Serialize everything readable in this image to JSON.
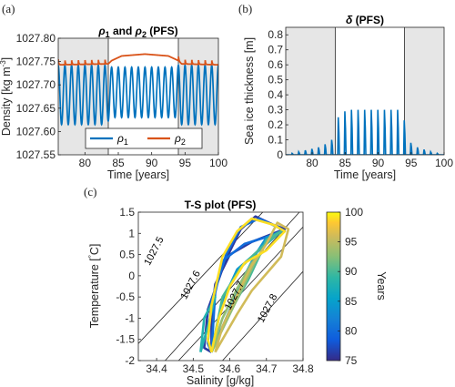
{
  "figure": {
    "label_a": "(a)",
    "label_b": "(b)",
    "label_c": "(c)"
  },
  "chart_data": [
    {
      "id": "a",
      "type": "line",
      "title": "ρ₁ and ρ₂ (PFS)",
      "xlabel": "Time [years]",
      "ylabel": "Density [kg m⁻³]",
      "xlim": [
        76,
        100
      ],
      "ylim": [
        1027.55,
        1027.8
      ],
      "xticks": [
        80,
        85,
        90,
        95,
        100
      ],
      "yticks": [
        1027.55,
        1027.6,
        1027.65,
        1027.7,
        1027.75,
        1027.8
      ],
      "shaded_intervals": [
        [
          76,
          83.5
        ],
        [
          94,
          100
        ]
      ],
      "legend": {
        "position": "bottom-center",
        "entries": [
          "ρ1",
          "ρ2"
        ]
      },
      "series": [
        {
          "name": "ρ1",
          "color": "#0072BD",
          "kind": "seasonal",
          "period": 1,
          "envelope": [
            [
              76,
              1027.615,
              1027.742
            ],
            [
              83,
              1027.615,
              1027.742
            ],
            [
              84,
              1027.63,
              1027.738
            ],
            [
              93.5,
              1027.63,
              1027.738
            ],
            [
              94,
              1027.615,
              1027.742
            ],
            [
              100,
              1027.615,
              1027.742
            ]
          ]
        },
        {
          "name": "ρ2",
          "color": "#D95319",
          "kind": "spiky",
          "base": [
            [
              76,
              1027.743
            ],
            [
              83.5,
              1027.745
            ],
            [
              84,
              1027.752
            ],
            [
              85.5,
              1027.762
            ],
            [
              89,
              1027.766
            ],
            [
              92.5,
              1027.762
            ],
            [
              94,
              1027.752
            ],
            [
              94.5,
              1027.745
            ],
            [
              100,
              1027.743
            ]
          ],
          "spike_height": 0.012,
          "spike_interval": [
            76,
            84
          ],
          "spike_interval_2": [
            94,
            100
          ]
        }
      ]
    },
    {
      "id": "b",
      "type": "line",
      "title": "δ (PFS)",
      "xlabel": "Time [years]",
      "ylabel": "Sea ice thickness [m]",
      "xlim": [
        76,
        100
      ],
      "ylim": [
        0,
        0.85
      ],
      "xticks": [
        80,
        85,
        90,
        95,
        100
      ],
      "yticks": [
        0,
        0.1,
        0.2,
        0.3,
        0.4,
        0.5,
        0.6,
        0.7,
        0.8
      ],
      "shaded_intervals": [
        [
          76,
          83.5
        ],
        [
          94,
          100
        ]
      ],
      "series": [
        {
          "name": "δ",
          "color": "#0072BD",
          "spike_years": [
            77,
            78,
            79,
            80,
            81,
            82,
            83,
            84,
            85,
            86,
            87,
            88,
            89,
            90,
            91,
            92,
            93,
            94,
            95,
            96,
            97,
            98,
            99
          ],
          "spike_heights": [
            0.01,
            0.02,
            0.03,
            0.04,
            0.05,
            0.07,
            0.1,
            0.25,
            0.29,
            0.3,
            0.3,
            0.3,
            0.3,
            0.3,
            0.3,
            0.3,
            0.3,
            0.23,
            0.08,
            0.05,
            0.035,
            0.02,
            0.01
          ]
        }
      ]
    },
    {
      "id": "c",
      "type": "line",
      "title": "T-S plot (PFS)",
      "xlabel": "Salinity [g/kg]",
      "ylabel": "Temperature [°C]",
      "xlim": [
        34.35,
        34.8
      ],
      "ylim": [
        -2,
        1.5
      ],
      "xticks": [
        34.4,
        34.5,
        34.6,
        34.7,
        34.8
      ],
      "yticks": [
        -2,
        -1.5,
        -1,
        -0.5,
        0,
        0.5,
        1,
        1.5
      ],
      "isopycnals": [
        {
          "label": "1027.5",
          "pts": [
            [
              34.35,
              -1.6
            ],
            [
              34.69,
              1.5
            ]
          ]
        },
        {
          "label": "1027.6",
          "pts": [
            [
              34.35,
              -2.7
            ],
            [
              34.79,
              1.5
            ]
          ]
        },
        {
          "label": "1027.7",
          "pts": [
            [
              34.46,
              -2
            ],
            [
              34.8,
              1.15
            ]
          ]
        },
        {
          "label": "1027.8",
          "pts": [
            [
              34.58,
              -2
            ],
            [
              34.8,
              0.1
            ]
          ]
        }
      ],
      "isopycnal_labels": [
        {
          "text": "1027.5",
          "x": 34.4,
          "y": 0.55
        },
        {
          "text": "1027.6",
          "x": 34.5,
          "y": -0.25
        },
        {
          "text": "1027.7",
          "x": 34.62,
          "y": -0.5
        },
        {
          "text": "1027.8",
          "x": 34.71,
          "y": -0.8
        }
      ],
      "colorbar": {
        "label": "Years",
        "min": 75,
        "max": 100,
        "ticks": [
          75,
          80,
          85,
          90,
          95,
          100
        ]
      },
      "trajectories": [
        {
          "year": 76,
          "pts": [
            [
              34.55,
              -1.8
            ],
            [
              34.53,
              -1.7
            ],
            [
              34.54,
              -0.8
            ],
            [
              34.59,
              0.4
            ],
            [
              34.63,
              1.1
            ],
            [
              34.67,
              1.4
            ],
            [
              34.72,
              1.2
            ],
            [
              34.75,
              1.1
            ],
            [
              34.66,
              0.8
            ],
            [
              34.6,
              0.5
            ],
            [
              34.56,
              -0.2
            ],
            [
              34.55,
              -1.0
            ],
            [
              34.55,
              -1.8
            ]
          ]
        },
        {
          "year": 80,
          "pts": [
            [
              34.55,
              -1.8
            ],
            [
              34.54,
              -1.6
            ],
            [
              34.55,
              -0.6
            ],
            [
              34.59,
              0.5
            ],
            [
              34.63,
              1.15
            ],
            [
              34.68,
              1.35
            ],
            [
              34.73,
              1.15
            ],
            [
              34.75,
              1.05
            ],
            [
              34.64,
              0.75
            ],
            [
              34.58,
              0.35
            ],
            [
              34.56,
              -0.4
            ],
            [
              34.55,
              -1.8
            ]
          ]
        },
        {
          "year": 84,
          "pts": [
            [
              34.55,
              -1.8
            ],
            [
              34.6,
              -0.8
            ],
            [
              34.64,
              0.0
            ],
            [
              34.67,
              0.5
            ],
            [
              34.7,
              0.9
            ],
            [
              34.74,
              1.05
            ],
            [
              34.68,
              0.6
            ],
            [
              34.62,
              0.15
            ],
            [
              34.58,
              -0.6
            ],
            [
              34.55,
              -1.8
            ]
          ]
        },
        {
          "year": 88,
          "pts": [
            [
              34.52,
              -1.8
            ],
            [
              34.54,
              -1.2
            ],
            [
              34.56,
              -0.5
            ],
            [
              34.53,
              -1.0
            ],
            [
              34.52,
              -1.8
            ]
          ]
        },
        {
          "year": 90,
          "pts": [
            [
              34.55,
              -1.8
            ],
            [
              34.61,
              -0.7
            ],
            [
              34.65,
              -0.1
            ],
            [
              34.68,
              0.45
            ],
            [
              34.7,
              0.85
            ],
            [
              34.74,
              1.05
            ],
            [
              34.69,
              0.7
            ],
            [
              34.63,
              0.2
            ],
            [
              34.58,
              -0.5
            ],
            [
              34.55,
              -1.8
            ]
          ]
        },
        {
          "year": 93,
          "pts": [
            [
              34.55,
              -1.8
            ],
            [
              34.6,
              -0.9
            ],
            [
              34.64,
              -0.2
            ],
            [
              34.67,
              0.35
            ],
            [
              34.69,
              0.6
            ],
            [
              34.66,
              0.3
            ],
            [
              34.62,
              -0.3
            ],
            [
              34.58,
              -1.0
            ],
            [
              34.55,
              -1.8
            ]
          ]
        },
        {
          "year": 96,
          "pts": [
            [
              34.56,
              -1.8
            ],
            [
              34.62,
              -0.9
            ],
            [
              34.66,
              -0.35
            ],
            [
              34.7,
              0.05
            ],
            [
              34.74,
              0.45
            ],
            [
              34.76,
              1.1
            ],
            [
              34.73,
              1.25
            ],
            [
              34.7,
              0.75
            ],
            [
              34.66,
              0.25
            ],
            [
              34.62,
              -0.45
            ],
            [
              34.58,
              -1.2
            ],
            [
              34.56,
              -1.8
            ]
          ]
        },
        {
          "year": 99,
          "pts": [
            [
              34.55,
              -1.8
            ],
            [
              34.54,
              -1.5
            ],
            [
              34.55,
              -0.7
            ],
            [
              34.58,
              0.45
            ],
            [
              34.62,
              1.05
            ],
            [
              34.66,
              1.35
            ],
            [
              34.72,
              1.2
            ],
            [
              34.75,
              1.05
            ],
            [
              34.7,
              0.6
            ],
            [
              34.64,
              0.3
            ],
            [
              34.6,
              -0.25
            ],
            [
              34.57,
              -1.0
            ],
            [
              34.55,
              -1.8
            ]
          ]
        }
      ]
    }
  ]
}
